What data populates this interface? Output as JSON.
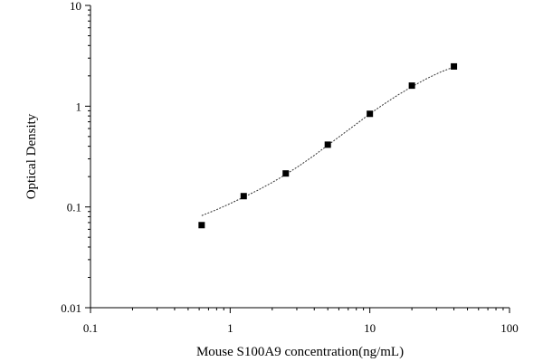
{
  "chart_data": {
    "type": "scatter",
    "x_scale": "log",
    "y_scale": "log",
    "xlim": [
      0.1,
      100
    ],
    "ylim": [
      0.01,
      10
    ],
    "xlabel": "Mouse S100A9 concentration(ng/mL)",
    "ylabel": "Optical Density",
    "x_ticks": [
      0.1,
      1,
      10,
      100
    ],
    "x_tick_labels": [
      "0.1",
      "1",
      "10",
      "100"
    ],
    "y_ticks": [
      0.01,
      0.1,
      1,
      10
    ],
    "y_tick_labels": [
      "0.01",
      "0.1",
      "1",
      "10"
    ],
    "series": [
      {
        "x": [
          0.625,
          1.25,
          2.5,
          5,
          10,
          20,
          40
        ],
        "y": [
          0.066,
          0.128,
          0.215,
          0.415,
          0.84,
          1.6,
          2.48
        ]
      }
    ],
    "fit_curve": {
      "style": "dotted",
      "x": [
        0.625,
        0.8,
        1,
        1.25,
        1.6,
        2,
        2.5,
        3.2,
        4,
        5,
        6.3,
        8,
        10,
        12.5,
        16,
        20,
        25,
        32,
        40
      ],
      "y": [
        0.082,
        0.094,
        0.108,
        0.125,
        0.148,
        0.175,
        0.21,
        0.262,
        0.325,
        0.41,
        0.52,
        0.665,
        0.84,
        1.04,
        1.3,
        1.56,
        1.85,
        2.18,
        2.45
      ]
    },
    "grid": false,
    "legend": "none"
  },
  "colors": {
    "background": "#ffffff",
    "axis": "#000000",
    "points": "#000000",
    "curve": "#333333"
  }
}
